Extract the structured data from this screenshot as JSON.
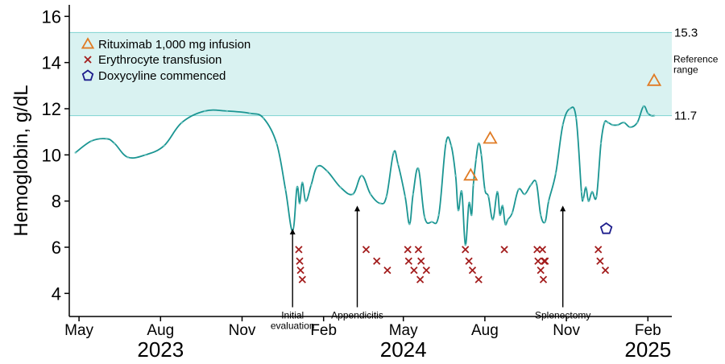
{
  "chart_data": {
    "type": "line",
    "ylabel": "Hemoglobin, g/dL",
    "ylim": [
      3,
      16.5
    ],
    "yticks": [
      4,
      6,
      8,
      10,
      12,
      14,
      16
    ],
    "xlim": [
      "2023-04-20",
      "2025-02-28"
    ],
    "xticks": [
      {
        "date": "2023-05-01",
        "label": "May"
      },
      {
        "date": "2023-08-01",
        "label": "Aug"
      },
      {
        "date": "2023-11-01",
        "label": "Nov"
      },
      {
        "date": "2024-02-01",
        "label": "Feb"
      },
      {
        "date": "2024-05-01",
        "label": "May"
      },
      {
        "date": "2024-08-01",
        "label": "Aug"
      },
      {
        "date": "2024-11-01",
        "label": "Nov"
      },
      {
        "date": "2025-02-01",
        "label": "Feb"
      }
    ],
    "year_labels": [
      {
        "date": "2023-08-01",
        "label": "2023"
      },
      {
        "date": "2024-05-01",
        "label": "2024"
      },
      {
        "date": "2025-02-01",
        "label": "2025"
      }
    ],
    "reference_range": {
      "low": 11.7,
      "high": 15.3,
      "low_label": "11.7",
      "high_label": "15.3",
      "label": "Reference range",
      "color": "#d9f2f1",
      "line_color": "#7fd3d1"
    },
    "line_color": "#1a9592",
    "hemoglobin": {
      "x": [
        "2023-04-27",
        "2023-05-15",
        "2023-06-01",
        "2023-06-10",
        "2023-06-25",
        "2023-07-15",
        "2023-08-05",
        "2023-08-25",
        "2023-09-20",
        "2023-10-15",
        "2023-11-10",
        "2023-11-25",
        "2023-12-10",
        "2023-12-20",
        "2023-12-28",
        "2024-01-02",
        "2024-01-05",
        "2024-01-08",
        "2024-01-12",
        "2024-01-18",
        "2024-01-25",
        "2024-02-05",
        "2024-02-20",
        "2024-03-05",
        "2024-03-15",
        "2024-03-25",
        "2024-04-05",
        "2024-04-12",
        "2024-04-20",
        "2024-04-25",
        "2024-05-03",
        "2024-05-08",
        "2024-05-12",
        "2024-05-18",
        "2024-05-25",
        "2024-06-02",
        "2024-06-10",
        "2024-06-18",
        "2024-06-24",
        "2024-06-29",
        "2024-07-02",
        "2024-07-06",
        "2024-07-10",
        "2024-07-14",
        "2024-07-17",
        "2024-07-19",
        "2024-07-22",
        "2024-07-25",
        "2024-07-28",
        "2024-08-01",
        "2024-08-05",
        "2024-08-10",
        "2024-08-15",
        "2024-08-18",
        "2024-08-21",
        "2024-08-24",
        "2024-08-27",
        "2024-09-01",
        "2024-09-08",
        "2024-09-15",
        "2024-09-22",
        "2024-09-28",
        "2024-10-03",
        "2024-10-08",
        "2024-10-12",
        "2024-10-20",
        "2024-10-28",
        "2024-11-05",
        "2024-11-12",
        "2024-11-18",
        "2024-11-20",
        "2024-11-23",
        "2024-11-26",
        "2024-11-30",
        "2024-12-05",
        "2024-12-10",
        "2024-12-14",
        "2024-12-18",
        "2024-12-23",
        "2024-12-29",
        "2025-01-05",
        "2025-01-12",
        "2025-01-20",
        "2025-01-27",
        "2025-02-01",
        "2025-02-05",
        "2025-02-08"
      ],
      "y": [
        10.1,
        10.6,
        10.7,
        10.5,
        9.9,
        10.0,
        10.4,
        11.4,
        11.9,
        11.9,
        11.8,
        11.6,
        10.5,
        8.5,
        6.7,
        8.6,
        7.9,
        8.8,
        8.0,
        8.7,
        9.5,
        9.3,
        8.6,
        8.3,
        9.1,
        8.3,
        7.9,
        8.2,
        10.1,
        9.6,
        8.2,
        7.0,
        8.3,
        9.4,
        7.3,
        7.1,
        7.4,
        10.5,
        10.4,
        9.1,
        7.6,
        8.4,
        6.1,
        7.9,
        7.4,
        8.7,
        9.8,
        10.5,
        10.0,
        8.5,
        8.2,
        7.2,
        8.4,
        7.4,
        7.8,
        7.0,
        7.2,
        7.5,
        8.5,
        8.3,
        8.7,
        8.8,
        7.4,
        7.1,
        8.0,
        9.2,
        11.3,
        12.0,
        11.6,
        8.4,
        8.1,
        8.6,
        8.0,
        8.4,
        8.2,
        10.5,
        11.4,
        11.4,
        11.3,
        11.3,
        11.4,
        11.2,
        11.4,
        12.1,
        11.8,
        11.7,
        11.7
      ]
    },
    "series_rituximab": {
      "name": "Rituximab 1,000 mg infusion",
      "color": "#e07b24",
      "x": [
        "2024-07-16",
        "2024-08-07",
        "2025-02-08"
      ],
      "y": [
        9.1,
        10.7,
        13.2
      ]
    },
    "series_transfusion": {
      "name": "Erythrocyte transfusion",
      "color": "#a31d1d",
      "x": [
        "2024-01-04",
        "2024-01-05",
        "2024-01-06",
        "2024-01-08",
        "2024-03-20",
        "2024-04-01",
        "2024-04-13",
        "2024-05-06",
        "2024-05-07",
        "2024-05-13",
        "2024-05-18",
        "2024-05-20",
        "2024-05-21",
        "2024-05-27",
        "2024-07-10",
        "2024-07-14",
        "2024-07-18",
        "2024-07-25",
        "2024-08-23",
        "2024-09-29",
        "2024-09-30",
        "2024-10-03",
        "2024-10-05",
        "2024-10-06",
        "2024-10-07",
        "2024-10-08",
        "2024-12-07",
        "2024-12-09",
        "2024-12-15"
      ],
      "y": [
        5.9,
        5.4,
        5.0,
        4.6,
        5.9,
        5.4,
        5.0,
        5.9,
        5.4,
        5.0,
        5.9,
        4.6,
        5.4,
        5.0,
        5.9,
        5.4,
        5.0,
        4.6,
        5.9,
        5.9,
        5.4,
        5.0,
        5.9,
        4.6,
        5.4,
        5.4,
        5.9,
        5.4,
        5.0
      ]
    },
    "series_doxycycline": {
      "name": "Doxycyline commenced",
      "color": "#1d1d8c",
      "x": [
        "2024-12-16"
      ],
      "y": [
        6.8
      ]
    },
    "annotations": [
      {
        "date": "2023-12-28",
        "y_start": 3.4,
        "y_end": 6.8,
        "label_lines": [
          "Initial",
          "evaluation"
        ]
      },
      {
        "date": "2024-03-10",
        "y_start": 3.4,
        "y_end": 7.8,
        "label_lines": [
          "Appendicitis"
        ]
      },
      {
        "date": "2024-10-28",
        "y_start": 3.4,
        "y_end": 7.8,
        "label_lines": [
          "Splenectomy"
        ]
      }
    ],
    "legend_position": "top-left"
  }
}
